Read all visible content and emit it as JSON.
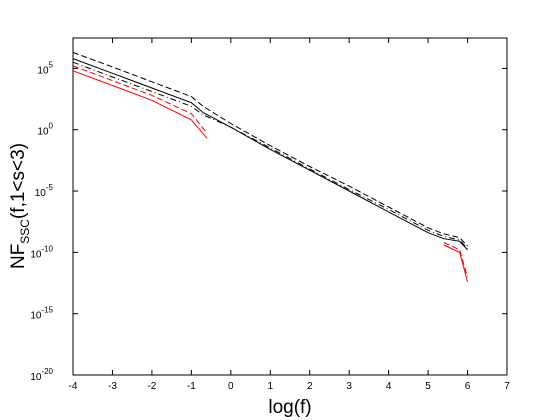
{
  "chart_data": {
    "type": "line",
    "log_y": true,
    "xlabel": "log(f)",
    "ylabel": {
      "main": "NF",
      "sub": "SSC",
      "rest": "(f,1<s<3)"
    },
    "xlim": [
      -4,
      7
    ],
    "xticks": [
      -4,
      -3,
      -2,
      -1,
      0,
      1,
      2,
      3,
      4,
      5,
      6,
      7
    ],
    "ylim": [
      1e-20,
      30000000.0
    ],
    "yticks": [
      {
        "value": 1e-20,
        "label": "10",
        "sup": "-20"
      },
      {
        "value": 1e-15,
        "label": "10",
        "sup": "-15"
      },
      {
        "value": 1e-10,
        "label": "10",
        "sup": "-10"
      },
      {
        "value": 1e-05,
        "label": "10",
        "sup": "-5"
      },
      {
        "value": 1,
        "label": "10",
        "sup": "0"
      },
      {
        "value": 100000.0,
        "label": "10",
        "sup": "5"
      }
    ],
    "series": [
      {
        "color": "#000000",
        "dash": "solid",
        "x": [
          -4,
          -3,
          -2,
          -1,
          -0.7,
          0,
          1,
          2,
          3,
          4,
          5,
          5.4,
          5.8,
          6
        ],
        "values": [
          630000.0,
          40000.0,
          2500,
          158,
          25,
          1.6,
          0.025,
          0.0005,
          1e-05,
          2e-07,
          4e-09,
          1.3e-09,
          8e-10,
          1.6e-10
        ]
      },
      {
        "color": "#000000",
        "dash": "dashed",
        "x": [
          -4,
          -3,
          -2,
          -1,
          -0.7,
          0,
          1,
          2,
          3,
          4,
          5,
          5.4,
          5.8,
          6
        ],
        "values": [
          2000000.0,
          130000.0,
          8000,
          500,
          80,
          3.2,
          0.05,
          0.001,
          2.5e-05,
          5e-07,
          1e-08,
          3.2e-09,
          1.6e-09,
          3.2e-10
        ]
      },
      {
        "color": "#000000",
        "dash": "dashdot",
        "x": [
          -4,
          -3,
          -2,
          -1,
          -0.7,
          0,
          1,
          2,
          3,
          4,
          5,
          5.4,
          5.8,
          6
        ],
        "values": [
          320000.0,
          20000.0,
          1300,
          80,
          16,
          1.6,
          0.032,
          0.00063,
          1.3e-05,
          3.2e-07,
          6.3e-09,
          2e-09,
          1e-09,
          2e-10
        ]
      },
      {
        "color": "#ff0000",
        "dash": "solid",
        "x": [
          -4,
          -3,
          -2,
          -1,
          -0.6,
          2,
          5.4,
          5.8,
          6
        ],
        "values": [
          63000.0,
          4000,
          250,
          6.3,
          0.2,
          null,
          4e-10,
          1e-10,
          4e-13
        ]
      },
      {
        "color": "#ff0000",
        "dash": "dashed",
        "x": [
          -4,
          -3,
          -2,
          -1,
          -0.6,
          2,
          5.4,
          5.8,
          6
        ],
        "values": [
          160000.0,
          10000.0,
          630,
          20,
          0.5,
          null,
          6.3e-10,
          1.6e-10,
          1e-12
        ]
      }
    ]
  }
}
